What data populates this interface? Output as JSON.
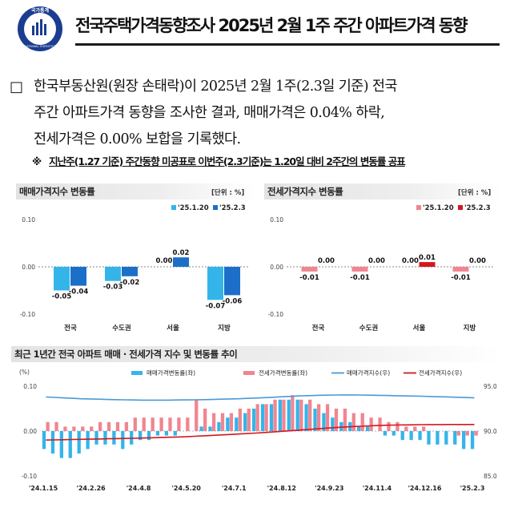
{
  "header": {
    "title": "전국주택가격동향조사 2025년 2월 1주 주간 아파트가격 동향",
    "logo_text_top": "국가통계",
    "logo_text_bottom": "NATIONAL STATISTICS"
  },
  "summary": {
    "bullet": "□",
    "lines": [
      "한국부동산원(원장 손태락)이 2025년 2월 1주(2.3일 기준) 전국",
      "주간 아파트가격 동향을 조사한 결과, 매매가격은 0.04% 하락,",
      "전세가격은 0.00% 보합을 기록했다."
    ],
    "note_mark": "※",
    "note": "지난주(1.27 기준) 주간동향 미공표로 이번주(2.3기준)는 1.20일 대비 2주간의 변동률 공표"
  },
  "chart_data": [
    {
      "type": "bar",
      "title": "매매가격지수 변동률",
      "unit": "[단위 : %]",
      "categories": [
        "전국",
        "수도권",
        "서울",
        "지방"
      ],
      "series": [
        {
          "name": "'25.1.20",
          "values": [
            -0.05,
            -0.03,
            0.0,
            -0.07
          ]
        },
        {
          "name": "'25.2.3",
          "values": [
            -0.04,
            -0.02,
            0.02,
            -0.06
          ]
        }
      ],
      "value_labels": [
        [
          "-0.05",
          "-0.03",
          "0.00",
          "-0.07"
        ],
        [
          "-0.04",
          "-0.02",
          "0.02",
          "-0.06"
        ]
      ],
      "yticks": [
        "0.10",
        "0.00",
        "-0.10"
      ],
      "ylim": [
        -0.1,
        0.1
      ],
      "colors": [
        "#33b5ea",
        "#1b6fc8"
      ],
      "legend": "top-right",
      "grid": false
    },
    {
      "type": "bar",
      "title": "전세가격지수 변동률",
      "unit": "[단위 : %]",
      "categories": [
        "전국",
        "수도권",
        "서울",
        "지방"
      ],
      "series": [
        {
          "name": "'25.1.20",
          "values": [
            -0.01,
            -0.01,
            0.0,
            -0.01
          ]
        },
        {
          "name": "'25.2.3",
          "values": [
            0.0,
            0.0,
            0.01,
            0.0
          ]
        }
      ],
      "value_labels": [
        [
          "-0.01",
          "-0.01",
          "0.00",
          "-0.01"
        ],
        [
          "0.00",
          "0.00",
          "0.01",
          "0.00"
        ]
      ],
      "yticks": [
        "0.10",
        "0.00",
        "-0.10"
      ],
      "ylim": [
        -0.1,
        0.1
      ],
      "colors": [
        "#f08591",
        "#d3171e"
      ],
      "legend": "top-right",
      "grid": false
    },
    {
      "type": "bar",
      "title": "최근 1년간 전국 아파트 매매 · 전세가격 지수 및 변동률 추이",
      "ylabel": "(%)",
      "yticks_left": [
        "0.10",
        "0.00",
        "-0.10"
      ],
      "yticks_right": [
        "95.0",
        "90.0",
        "85.0"
      ],
      "ylim": [
        -0.1,
        0.1
      ],
      "ylim_right": [
        85,
        95
      ],
      "x_ticks": [
        "'24.1.15",
        "'24.2.26",
        "'24.4.8",
        "'24.5.20",
        "'24.7.1",
        "'24.8.12",
        "'24.9.23",
        "'24.11.4",
        "'24.12.16",
        "'25.2.3"
      ],
      "legend": "top",
      "grid": false,
      "series": [
        {
          "name": "매매가격변동률(좌)",
          "kind": "bar",
          "color": "#33b5ea",
          "values": [
            -0.04,
            -0.05,
            -0.06,
            -0.06,
            -0.05,
            -0.04,
            -0.03,
            -0.03,
            -0.03,
            -0.04,
            -0.03,
            -0.02,
            -0.02,
            -0.01,
            -0.01,
            -0.01,
            0.0,
            0.0,
            0.01,
            0.01,
            0.02,
            0.03,
            0.03,
            0.04,
            0.05,
            0.06,
            0.06,
            0.07,
            0.07,
            0.07,
            0.06,
            0.05,
            0.04,
            0.03,
            0.02,
            0.02,
            0.01,
            0.01,
            0.0,
            -0.01,
            -0.01,
            -0.02,
            -0.02,
            -0.02,
            -0.03,
            -0.03,
            -0.03,
            -0.03,
            -0.04,
            -0.04
          ]
        },
        {
          "name": "전세가격변동률(좌)",
          "kind": "bar",
          "color": "#f08591",
          "values": [
            0.02,
            0.02,
            0.01,
            0.01,
            0.01,
            0.01,
            0.02,
            0.02,
            0.02,
            0.02,
            0.03,
            0.03,
            0.03,
            0.03,
            0.03,
            0.03,
            0.03,
            0.07,
            0.05,
            0.04,
            0.04,
            0.04,
            0.05,
            0.05,
            0.06,
            0.06,
            0.07,
            0.07,
            0.08,
            0.07,
            0.07,
            0.06,
            0.06,
            0.05,
            0.05,
            0.04,
            0.04,
            0.03,
            0.03,
            0.02,
            0.02,
            0.01,
            0.01,
            0.01,
            0.0,
            0.0,
            0.0,
            -0.01,
            -0.01,
            -0.01
          ]
        },
        {
          "name": "매매가격지수(우)",
          "kind": "line",
          "color": "#4a9ad6",
          "values": [
            93.8,
            93.75,
            93.7,
            93.65,
            93.6,
            93.58,
            93.55,
            93.52,
            93.5,
            93.48,
            93.46,
            93.45,
            93.45,
            93.45,
            93.45,
            93.46,
            93.47,
            93.48,
            93.5,
            93.52,
            93.55,
            93.58,
            93.6,
            93.64,
            93.68,
            93.72,
            93.77,
            93.82,
            93.87,
            93.92,
            93.95,
            93.98,
            94.0,
            94.02,
            94.03,
            94.03,
            94.02,
            94.0,
            93.98,
            93.96,
            93.94,
            93.92,
            93.9,
            93.88,
            93.85,
            93.82,
            93.8,
            93.77,
            93.74,
            93.7
          ]
        },
        {
          "name": "전세가격지수(우)",
          "kind": "line",
          "color": "#d3171e",
          "values": [
            89.0,
            89.02,
            89.04,
            89.06,
            89.08,
            89.1,
            89.12,
            89.14,
            89.16,
            89.18,
            89.2,
            89.22,
            89.25,
            89.28,
            89.31,
            89.34,
            89.37,
            89.42,
            89.47,
            89.52,
            89.57,
            89.62,
            89.67,
            89.72,
            89.78,
            89.84,
            89.9,
            89.97,
            90.04,
            90.11,
            90.18,
            90.25,
            90.32,
            90.38,
            90.44,
            90.5,
            90.54,
            90.58,
            90.62,
            90.65,
            90.67,
            90.69,
            90.7,
            90.71,
            90.72,
            90.72,
            90.73,
            90.73,
            90.73,
            90.73
          ]
        }
      ]
    }
  ]
}
